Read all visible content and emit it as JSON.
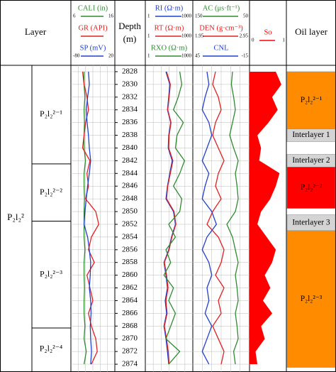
{
  "chart_data": {
    "type": "well-log",
    "layer_header": "Layer",
    "depth_label": "Depth",
    "depth_unit": "(m)",
    "oil_header": "Oil layer",
    "ylim": [
      2827,
      2875
    ],
    "yticks": [
      2828,
      2830,
      2832,
      2834,
      2836,
      2838,
      2840,
      2842,
      2844,
      2846,
      2848,
      2850,
      2852,
      2854,
      2856,
      2858,
      2860,
      2862,
      2864,
      2866,
      2868,
      2870,
      2872,
      2874
    ],
    "depths": [
      2828,
      2830,
      2832,
      2834,
      2836,
      2838,
      2840,
      2842,
      2844,
      2846,
      2848,
      2850,
      2852,
      2854,
      2856,
      2858,
      2860,
      2862,
      2864,
      2866,
      2868,
      2870,
      2872,
      2874
    ],
    "tracks": [
      {
        "curves": [
          {
            "name": "CALI (in)",
            "color": "#2e8b2e",
            "lim": [
              6,
              16
            ],
            "show_lim": true,
            "values": [
              9,
              9,
              9.2,
              9,
              9.1,
              9,
              9,
              9.3,
              9,
              9,
              9.1,
              9,
              9,
              9,
              9.2,
              9,
              9,
              9.1,
              9,
              9,
              9.2,
              9,
              9.5,
              9
            ]
          },
          {
            "name": "GR (API)",
            "color": "#e02020",
            "lim": [
              0,
              150
            ],
            "show_lim": false,
            "values": [
              40,
              45,
              55,
              60,
              50,
              45,
              40,
              65,
              55,
              60,
              50,
              85,
              95,
              70,
              60,
              80,
              55,
              65,
              75,
              60,
              70,
              85,
              90,
              70
            ]
          },
          {
            "name": "SP (mV)",
            "color": "#2040d0",
            "lim": [
              -80,
              20
            ],
            "show_lim": true,
            "values": [
              -40,
              -38,
              -42,
              -45,
              -43,
              -40,
              -38,
              -35,
              -38,
              -42,
              -45,
              -48,
              -50,
              -42,
              -38,
              -35,
              -36,
              -38,
              -35,
              -34,
              -36,
              -35,
              -33,
              -35
            ]
          }
        ]
      },
      {
        "log": true,
        "curves": [
          {
            "name": "RI (Ω·m)",
            "color": "#2040d0",
            "lim": [
              1,
              1000
            ],
            "show_lim": true,
            "values": [
              20,
              35,
              30,
              25,
              40,
              30,
              28,
              50,
              35,
              25,
              20,
              60,
              80,
              45,
              30,
              15,
              20,
              25,
              18,
              22,
              15,
              20,
              25,
              30
            ]
          },
          {
            "name": "RT (Ω·m)",
            "color": "#e02020",
            "lim": [
              1,
              1000
            ],
            "show_lim": true,
            "values": [
              22,
              38,
              32,
              26,
              42,
              32,
              30,
              55,
              38,
              26,
              22,
              65,
              85,
              48,
              32,
              16,
              22,
              27,
              20,
              24,
              16,
              22,
              28,
              32
            ]
          },
          {
            "name": "RXO (Ω·m)",
            "color": "#2e8b2e",
            "lim": [
              1,
              1000
            ],
            "show_lim": true,
            "values": [
              150,
              200,
              120,
              60,
              250,
              100,
              80,
              300,
              150,
              60,
              200,
              150,
              30,
              80,
              20,
              40,
              15,
              60,
              30,
              80,
              40,
              20,
              150,
              30
            ]
          }
        ]
      },
      {
        "curves": [
          {
            "name": "AC (μs·ft⁻¹)",
            "color": "#2e8b2e",
            "lim": [
              150,
              50
            ],
            "show_lim": true,
            "values": [
              80,
              82,
              78,
              75,
              80,
              85,
              78,
              70,
              75,
              72,
              70,
              75,
              90,
              80,
              75,
              70,
              75,
              72,
              70,
              75,
              72,
              70,
              78,
              75
            ]
          },
          {
            "name": "DEN (g·cm⁻³)",
            "color": "#e02020",
            "lim": [
              1.95,
              2.95
            ],
            "show_lim": true,
            "values": [
              2.35,
              2.3,
              2.4,
              2.45,
              2.35,
              2.3,
              2.4,
              2.5,
              2.4,
              2.35,
              2.45,
              2.3,
              2.2,
              2.4,
              2.5,
              2.45,
              2.35,
              2.5,
              2.4,
              2.45,
              2.3,
              2.4,
              2.5,
              2.45
            ]
          },
          {
            "name": "CNL",
            "color": "#2040d0",
            "lim": [
              45,
              -15
            ],
            "show_lim": true,
            "values": [
              30,
              28,
              32,
              35,
              28,
              25,
              30,
              35,
              28,
              32,
              35,
              25,
              20,
              30,
              35,
              28,
              25,
              30,
              28,
              32,
              25,
              30,
              35,
              28
            ]
          }
        ]
      },
      {
        "fill": true,
        "curves": [
          {
            "name": "So",
            "color": "#ff0000",
            "lim": [
              0,
              1
            ],
            "show_lim": true,
            "values": [
              0.7,
              0.85,
              0.6,
              0.75,
              0.5,
              0.2,
              0.3,
              0.25,
              0.8,
              0.7,
              0.55,
              0.3,
              0.2,
              0.45,
              0.7,
              0.6,
              0.4,
              0.55,
              0.35,
              0.6,
              0.3,
              0.4,
              0.15,
              0.2
            ]
          }
        ]
      }
    ],
    "formation": {
      "label": "P₂l₂²"
    },
    "layers": [
      {
        "label": "P₂l₂²⁻¹",
        "top": 2827,
        "bottom": 2842.5
      },
      {
        "label": "P₂l₂²⁻²",
        "top": 2842.5,
        "bottom": 2851.5
      },
      {
        "label": "P₂l₂²⁻³",
        "top": 2851.5,
        "bottom": 2868.3
      },
      {
        "label": "P₂l₂²⁻⁴",
        "top": 2868.3,
        "bottom": 2875
      }
    ],
    "oil_zones": [
      {
        "label": "P₂l₂²⁻¹",
        "top": 2828,
        "bottom": 2837,
        "color": "#ff8c00"
      },
      {
        "label": "Interlayer 1",
        "top": 2837,
        "bottom": 2839,
        "color": "#d4d4d4"
      },
      {
        "label": "Interlayer 2",
        "top": 2841,
        "bottom": 2843,
        "color": "#d4d4d4"
      },
      {
        "label": "P₂l₂²⁻²",
        "top": 2843,
        "bottom": 2849.5,
        "color": "#ff0000"
      },
      {
        "label": "Interlayer 3",
        "top": 2850.5,
        "bottom": 2853,
        "color": "#d4d4d4"
      },
      {
        "label": "P₂l₂²⁻³",
        "top": 2853,
        "bottom": 2874.5,
        "color": "#ff8c00"
      }
    ]
  }
}
